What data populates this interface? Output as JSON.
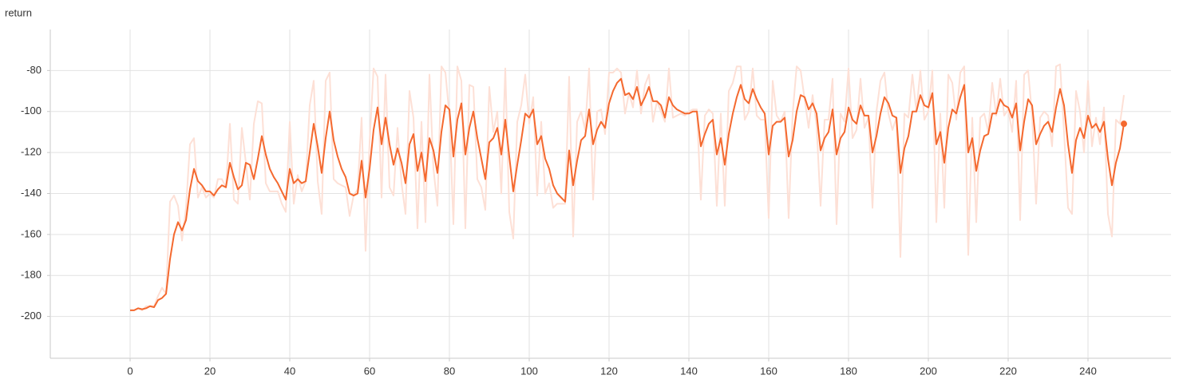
{
  "chart_data": {
    "type": "line",
    "title": "return",
    "x": [
      0,
      1,
      2,
      3,
      4,
      5,
      6,
      7,
      8,
      9,
      10,
      11,
      12,
      13,
      14,
      15,
      16,
      17,
      18,
      19,
      20,
      21,
      22,
      23,
      24,
      25,
      26,
      27,
      28,
      29,
      30,
      31,
      32,
      33,
      34,
      35,
      36,
      37,
      38,
      39,
      40,
      41,
      42,
      43,
      44,
      45,
      46,
      47,
      48,
      49,
      50,
      51,
      52,
      53,
      54,
      55,
      56,
      57,
      58,
      59,
      60,
      61,
      62,
      63,
      64,
      65,
      66,
      67,
      68,
      69,
      70,
      71,
      72,
      73,
      74,
      75,
      76,
      77,
      78,
      79,
      80,
      81,
      82,
      83,
      84,
      85,
      86,
      87,
      88,
      89,
      90,
      91,
      92,
      93,
      94,
      95,
      96,
      97,
      98,
      99,
      100,
      101,
      102,
      103,
      104,
      105,
      106,
      107,
      108,
      109,
      110,
      111,
      112,
      113,
      114,
      115,
      116,
      117,
      118,
      119,
      120,
      121,
      122,
      123,
      124,
      125,
      126,
      127,
      128,
      129,
      130,
      131,
      132,
      133,
      134,
      135,
      136,
      137,
      138,
      139,
      140,
      141,
      142,
      143,
      144,
      145,
      146,
      147,
      148,
      149,
      150,
      151,
      152,
      153,
      154,
      155,
      156,
      157,
      158,
      159,
      160,
      161,
      162,
      163,
      164,
      165,
      166,
      167,
      168,
      169,
      170,
      171,
      172,
      173,
      174,
      175,
      176,
      177,
      178,
      179,
      180,
      181,
      182,
      183,
      184,
      185,
      186,
      187,
      188,
      189,
      190,
      191,
      192,
      193,
      194,
      195,
      196,
      197,
      198,
      199,
      200,
      201,
      202,
      203,
      204,
      205,
      206,
      207,
      208,
      209,
      210,
      211,
      212,
      213,
      214,
      215,
      216,
      217,
      218,
      219,
      220,
      221,
      222,
      223,
      224,
      225,
      226,
      227,
      228,
      229,
      230,
      231,
      232,
      233,
      234,
      235,
      236,
      237,
      238,
      239,
      240,
      241,
      242,
      243,
      244,
      245,
      246,
      247,
      248,
      249
    ],
    "series": [
      {
        "color": "#fde0d6",
        "values": [
          -197,
          -197,
          -196,
          -197,
          -195,
          -195,
          -195,
          -190,
          -186,
          -189,
          -144,
          -141,
          -146,
          -163,
          -147,
          -116,
          -113,
          -142,
          -137,
          -142,
          -140,
          -142,
          -133,
          -133,
          -137,
          -106,
          -143,
          -145,
          -108,
          -125,
          -143,
          -106,
          -95,
          -96,
          -135,
          -139,
          -139,
          -139,
          -145,
          -149,
          -105,
          -145,
          -131,
          -139,
          -134,
          -97,
          -85,
          -134,
          -150,
          -85,
          -81,
          -133,
          -135,
          -136,
          -137,
          -151,
          -141,
          -138,
          -103,
          -168,
          -115,
          -79,
          -83,
          -142,
          -82,
          -137,
          -141,
          -108,
          -135,
          -150,
          -90,
          -103,
          -157,
          -105,
          -154,
          -82,
          -128,
          -146,
          -78,
          -81,
          -102,
          -155,
          -78,
          -85,
          -157,
          -87,
          -88,
          -133,
          -137,
          -148,
          -88,
          -110,
          -100,
          -140,
          -79,
          -149,
          -162,
          -105,
          -97,
          -82,
          -106,
          -93,
          -141,
          -105,
          -140,
          -135,
          -147,
          -145,
          -145,
          -145,
          -83,
          -161,
          -105,
          -100,
          -109,
          -79,
          -143,
          -100,
          -99,
          -111,
          -81,
          -81,
          -79,
          -81,
          -101,
          -91,
          -98,
          -80,
          -101,
          -87,
          -82,
          -105,
          -95,
          -100,
          -105,
          -79,
          -103,
          -102,
          -101,
          -102,
          -100,
          -99,
          -99,
          -143,
          -102,
          -99,
          -101,
          -146,
          -101,
          -146,
          -90,
          -86,
          -78,
          -78,
          -104,
          -100,
          -79,
          -102,
          -104,
          -104,
          -152,
          -85,
          -102,
          -105,
          -100,
          -152,
          -101,
          -78,
          -80,
          -94,
          -108,
          -92,
          -107,
          -146,
          -104,
          -104,
          -84,
          -155,
          -101,
          -105,
          -79,
          -113,
          -109,
          -84,
          -108,
          -103,
          -147,
          -100,
          -85,
          -81,
          -101,
          -109,
          -103,
          -171,
          -101,
          -103,
          -82,
          -100,
          -80,
          -104,
          -100,
          -80,
          -154,
          -101,
          -147,
          -82,
          -86,
          -104,
          -81,
          -78,
          -170,
          -103,
          -154,
          -103,
          -101,
          -110,
          -86,
          -102,
          -84,
          -102,
          -99,
          -110,
          -85,
          -153,
          -82,
          -80,
          -102,
          -145,
          -103,
          -100,
          -102,
          -117,
          -78,
          -77,
          -110,
          -147,
          -150,
          -90,
          -100,
          -120,
          -85,
          -117,
          -103,
          -116,
          -98,
          -150,
          -161,
          -104,
          -106,
          -92
        ]
      },
      {
        "color": "#f4692f",
        "values": [
          -197,
          -197,
          -196,
          -196.5,
          -196,
          -195,
          -195.5,
          -192,
          -191,
          -189,
          -172,
          -160,
          -154,
          -158,
          -153,
          -138,
          -128,
          -134,
          -136,
          -139,
          -139,
          -141,
          -138,
          -136,
          -137,
          -125,
          -132,
          -138,
          -136,
          -125,
          -126,
          -133,
          -123,
          -112,
          -121,
          -128,
          -132,
          -135,
          -139,
          -143,
          -128,
          -135,
          -133,
          -135,
          -134,
          -120,
          -106,
          -117,
          -130,
          -113,
          -100,
          -114,
          -122,
          -128,
          -132,
          -140,
          -141,
          -140,
          -124,
          -142,
          -128,
          -109,
          -98,
          -116,
          -103,
          -116,
          -126,
          -118,
          -125,
          -135,
          -116,
          -111,
          -129,
          -120,
          -134,
          -113,
          -119,
          -130,
          -110,
          -97,
          -99,
          -122,
          -104,
          -96,
          -121,
          -108,
          -100,
          -113,
          -123,
          -133,
          -115,
          -113,
          -108,
          -121,
          -104,
          -122,
          -139,
          -126,
          -114,
          -101,
          -103,
          -99,
          -116,
          -112,
          -123,
          -128,
          -136,
          -140,
          -142,
          -144,
          -119,
          -136,
          -124,
          -114,
          -112,
          -99,
          -116,
          -109,
          -105,
          -108,
          -96,
          -90,
          -86,
          -84,
          -92,
          -91,
          -94,
          -88,
          -97,
          -93,
          -88,
          -95,
          -95,
          -97,
          -103,
          -93,
          -97,
          -99,
          -100,
          -101,
          -101,
          -100,
          -100,
          -117,
          -111,
          -106,
          -104,
          -121,
          -113,
          -126,
          -111,
          -101,
          -93,
          -87,
          -94,
          -96,
          -89,
          -94,
          -98,
          -101,
          -121,
          -107,
          -105,
          -105,
          -103,
          -122,
          -114,
          -100,
          -92,
          -93,
          -99,
          -96,
          -101,
          -119,
          -113,
          -110,
          -99,
          -121,
          -113,
          -110,
          -98,
          -104,
          -106,
          -97,
          -102,
          -102,
          -120,
          -112,
          -101,
          -93,
          -96,
          -102,
          -103,
          -130,
          -118,
          -112,
          -100,
          -100,
          -92,
          -97,
          -98,
          -91,
          -116,
          -110,
          -125,
          -108,
          -99,
          -101,
          -93,
          -87,
          -120,
          -113,
          -129,
          -119,
          -112,
          -111,
          -101,
          -101,
          -94,
          -97,
          -98,
          -103,
          -96,
          -119,
          -105,
          -94,
          -97,
          -116,
          -111,
          -107,
          -105,
          -110,
          -98,
          -89,
          -97,
          -116,
          -130,
          -114,
          -108,
          -113,
          -102,
          -108,
          -106,
          -110,
          -105,
          -123,
          -136,
          -125,
          -118,
          -106
        ]
      }
    ],
    "xlim": [
      -20,
      260.8
    ],
    "ylim": [
      -220.4,
      -60
    ],
    "xticks": [
      0,
      20,
      40,
      60,
      80,
      100,
      120,
      140,
      160,
      180,
      200,
      220,
      240
    ],
    "yticks": [
      -200,
      -180,
      -160,
      -140,
      -120,
      -100,
      -80
    ],
    "grid": true
  }
}
